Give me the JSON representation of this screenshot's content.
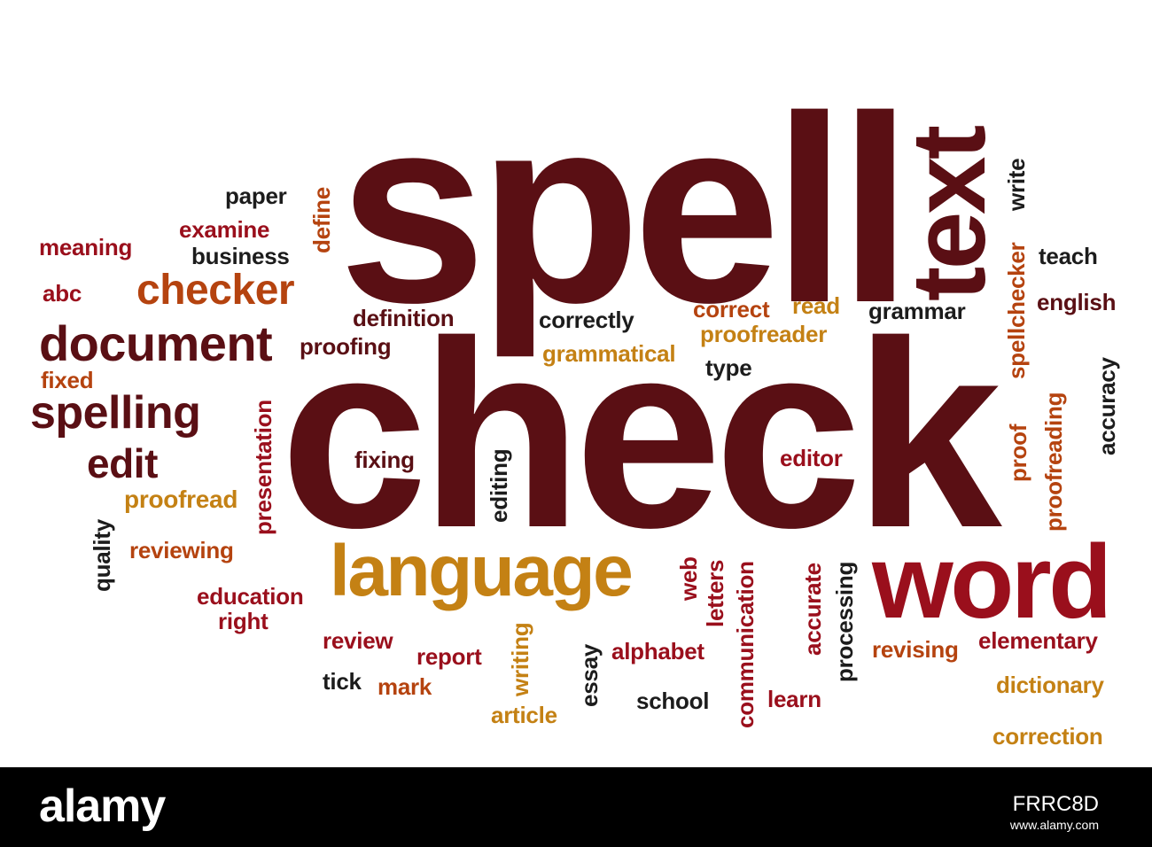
{
  "colors": {
    "maroon": "#5a0f14",
    "red": "#9a0f1c",
    "rust": "#b5430f",
    "gold": "#c48114",
    "black": "#1c1c1c"
  },
  "words": {
    "spell": "spell",
    "check": "check",
    "text": "text",
    "word": "word",
    "language": "language",
    "document": "document",
    "spelling": "spelling",
    "checker": "checker",
    "edit": "edit",
    "paper": "paper",
    "examine": "examine",
    "business": "business",
    "meaning": "meaning",
    "abc": "abc",
    "define": "define",
    "definition": "definition",
    "proofing": "proofing",
    "correctly": "correctly",
    "grammatical": "grammatical",
    "correct": "correct",
    "read": "read",
    "proofreader": "proofreader",
    "type": "type",
    "grammar": "grammar",
    "write": "write",
    "teach": "teach",
    "english": "english",
    "spellchecker": "spellchecker",
    "accuracy": "accuracy",
    "fixed": "fixed",
    "presentation": "presentation",
    "fixing": "fixing",
    "editing": "editing",
    "editor": "editor",
    "proof": "proof",
    "proofreading": "proofreading",
    "proofread": "proofread",
    "quality": "quality",
    "reviewing": "reviewing",
    "education": "education",
    "right": "right",
    "review": "review",
    "report": "report",
    "writing": "writing",
    "essay": "essay",
    "alphabet": "alphabet",
    "web": "web",
    "letters": "letters",
    "communication": "communication",
    "accurate": "accurate",
    "processing": "processing",
    "revising": "revising",
    "elementary": "elementary",
    "tick": "tick",
    "mark": "mark",
    "article": "article",
    "school": "school",
    "learn": "learn",
    "dictionary": "dictionary",
    "correction": "correction"
  },
  "footer": {
    "brand": "alamy",
    "image_code": "FRRC8D",
    "url": "www.alamy.com"
  }
}
